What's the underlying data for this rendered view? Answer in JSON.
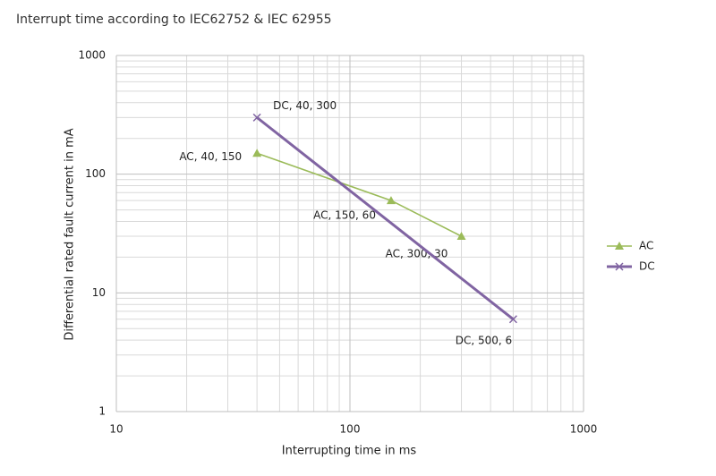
{
  "chart_data": {
    "type": "line",
    "title": "Interrupt time according to IEC62752 & IEC 62955",
    "x_label": "Interrupting time in ms",
    "y_label": "Differential rated fault current in mA",
    "log_x": true,
    "log_y": true,
    "grid": true,
    "minor_grid": true,
    "legend": "right",
    "xlim": [
      10,
      1000
    ],
    "xticks": [
      10,
      100,
      1000
    ],
    "ylim": [
      1,
      1000
    ],
    "yticks": [
      1,
      10,
      100,
      1000
    ],
    "series": [
      {
        "name": "AC",
        "color": "#9bbb59",
        "marker": "triangle",
        "x": [
          40,
          150,
          300
        ],
        "values": [
          150,
          60,
          30
        ],
        "value_labels": [
          "AC, 40, 150",
          "AC, 150, 60",
          "AC, 300, 30"
        ]
      },
      {
        "name": "DC",
        "color": "#8064a2",
        "marker": "x",
        "x": [
          40,
          500
        ],
        "values": [
          300,
          6
        ],
        "value_labels": [
          "DC, 40, 300",
          "DC, 500, 6"
        ]
      }
    ]
  }
}
